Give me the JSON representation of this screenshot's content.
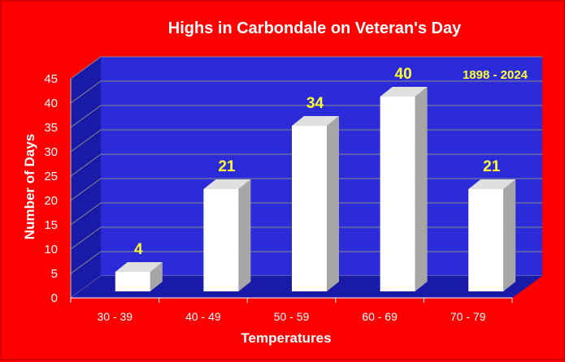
{
  "chart_data": {
    "type": "bar",
    "title": "Highs in Carbondale on Veteran's Day",
    "annotation": "1898 - 2024",
    "xlabel": "Temperatures",
    "ylabel": "Number of Days",
    "categories": [
      "30 - 39",
      "40 - 49",
      "50 - 59",
      "60 - 69",
      "70 - 79"
    ],
    "values": [
      4,
      21,
      34,
      40,
      21
    ],
    "data_labels": [
      "4",
      "21",
      "34",
      "40",
      "21"
    ],
    "ylim": [
      0,
      45
    ],
    "yticks": [
      0,
      5,
      10,
      15,
      20,
      25,
      30,
      35,
      40,
      45
    ],
    "grid": true,
    "legend": "none",
    "style": "3d",
    "colors": {
      "background": "#ff0000",
      "plot_wall": "#2b2bd9",
      "plot_floor": "#1a1aa8",
      "bar_front": "#ffffff",
      "bar_side": "#a6a6a6",
      "bar_top": "#e0e0e0",
      "label_text": "#ffff33",
      "axis_text": "#ffffff"
    }
  }
}
